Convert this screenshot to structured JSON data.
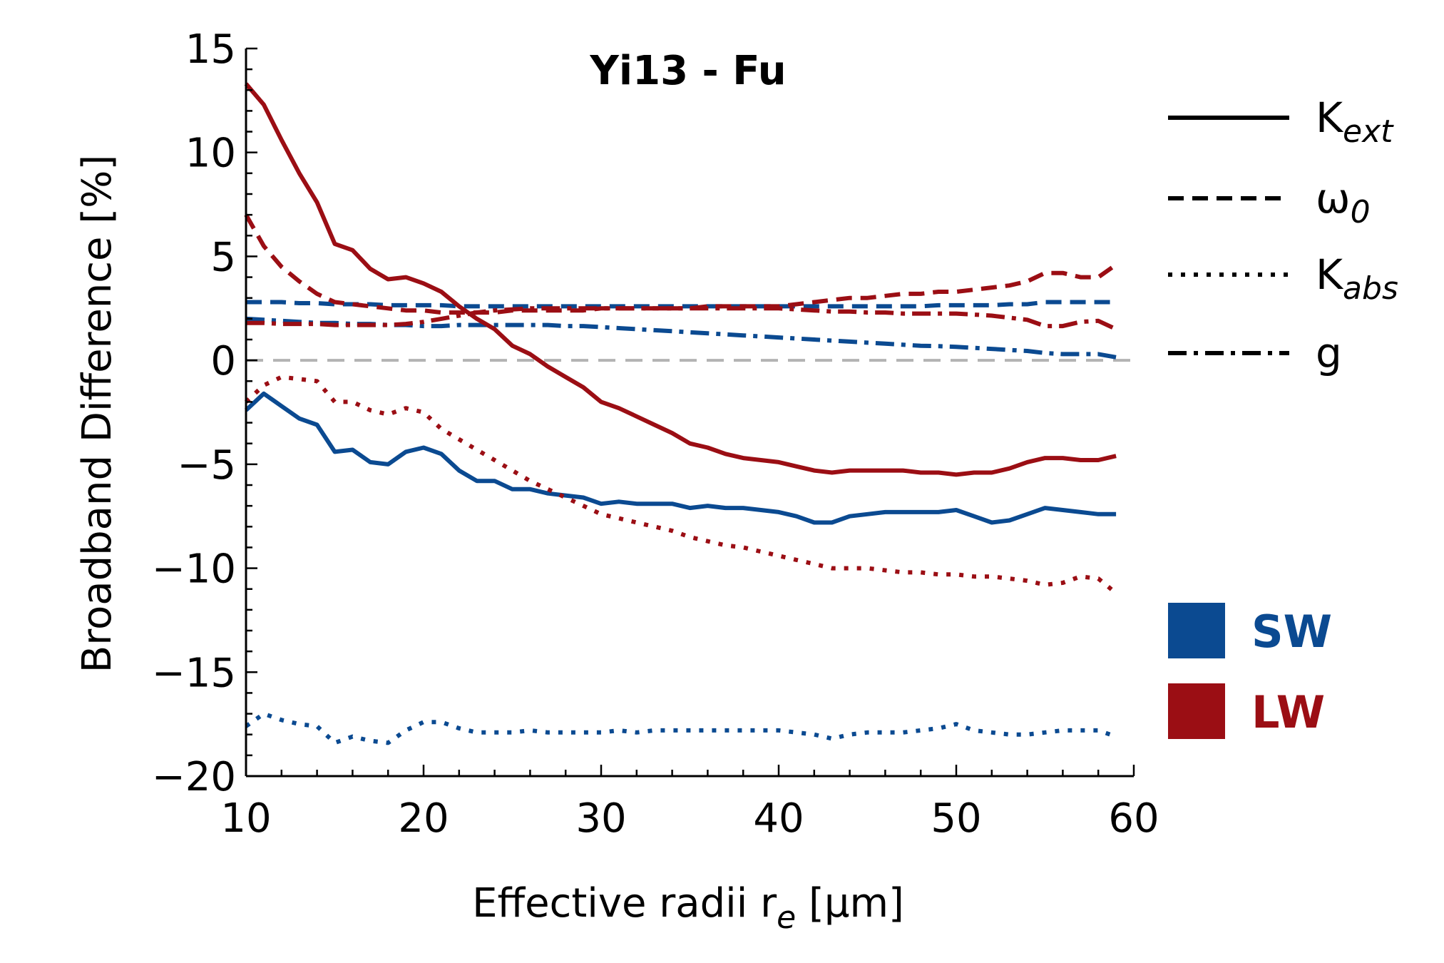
{
  "chart_data": {
    "type": "line",
    "title": "Yi13 - Fu",
    "xlabel": "Effective radii r",
    "xlabel_sub": "e",
    "xlabel_units": " [μm]",
    "ylabel": "Broadband Difference [%]",
    "xlim": [
      10,
      60
    ],
    "ylim": [
      -20,
      15
    ],
    "x_ticks": [
      10,
      20,
      30,
      40,
      50,
      60
    ],
    "x_tick_labels": [
      "10",
      "20",
      "30",
      "40",
      "50",
      "60"
    ],
    "y_ticks": [
      -20,
      -15,
      -10,
      -5,
      0,
      5,
      10,
      15
    ],
    "y_tick_labels": [
      "−20",
      "−15",
      "−10",
      "−5",
      "0",
      "5",
      "10",
      "15"
    ],
    "reference_line": {
      "y": 0,
      "style": "dashed",
      "color": "#b3b3b3"
    },
    "grid": false,
    "x": [
      10,
      11,
      12,
      13,
      14,
      15,
      16,
      17,
      18,
      19,
      20,
      21,
      22,
      23,
      24,
      25,
      26,
      27,
      28,
      29,
      30,
      31,
      32,
      33,
      34,
      35,
      36,
      37,
      38,
      39,
      40,
      41,
      42,
      43,
      44,
      45,
      46,
      47,
      48,
      49,
      50,
      51,
      52,
      53,
      54,
      55,
      56,
      57,
      58,
      59
    ],
    "series": [
      {
        "band": "SW",
        "property": "K_ext",
        "style": "solid",
        "color": "#0b4a91",
        "values": [
          -2.4,
          -1.6,
          -2.2,
          -2.8,
          -3.1,
          -4.4,
          -4.3,
          -4.9,
          -5.0,
          -4.4,
          -4.2,
          -4.5,
          -5.3,
          -5.8,
          -5.8,
          -6.2,
          -6.2,
          -6.4,
          -6.5,
          -6.6,
          -6.9,
          -6.8,
          -6.9,
          -6.9,
          -6.9,
          -7.1,
          -7.0,
          -7.1,
          -7.1,
          -7.2,
          -7.3,
          -7.5,
          -7.8,
          -7.8,
          -7.5,
          -7.4,
          -7.3,
          -7.3,
          -7.3,
          -7.3,
          -7.2,
          -7.5,
          -7.8,
          -7.7,
          -7.4,
          -7.1,
          -7.2,
          -7.3,
          -7.4,
          -7.4
        ]
      },
      {
        "band": "SW",
        "property": "omega_0",
        "style": "dashed",
        "color": "#0b4a91",
        "values": [
          2.8,
          2.8,
          2.8,
          2.75,
          2.75,
          2.7,
          2.7,
          2.7,
          2.65,
          2.65,
          2.65,
          2.65,
          2.6,
          2.6,
          2.6,
          2.6,
          2.6,
          2.6,
          2.6,
          2.6,
          2.6,
          2.6,
          2.6,
          2.6,
          2.6,
          2.6,
          2.6,
          2.6,
          2.6,
          2.6,
          2.6,
          2.6,
          2.6,
          2.6,
          2.6,
          2.6,
          2.6,
          2.6,
          2.6,
          2.65,
          2.65,
          2.65,
          2.65,
          2.7,
          2.7,
          2.8,
          2.8,
          2.8,
          2.8,
          2.8
        ]
      },
      {
        "band": "SW",
        "property": "K_abs",
        "style": "dotted",
        "color": "#0b4a91",
        "values": [
          -17.6,
          -17.0,
          -17.3,
          -17.5,
          -17.6,
          -18.4,
          -18.1,
          -18.3,
          -18.4,
          -17.8,
          -17.4,
          -17.4,
          -17.7,
          -17.9,
          -17.9,
          -17.9,
          -17.8,
          -17.9,
          -17.9,
          -17.9,
          -17.9,
          -17.8,
          -17.9,
          -17.8,
          -17.8,
          -17.8,
          -17.8,
          -17.8,
          -17.8,
          -17.8,
          -17.8,
          -17.9,
          -18.0,
          -18.2,
          -18.0,
          -17.9,
          -17.9,
          -17.9,
          -17.8,
          -17.7,
          -17.5,
          -17.8,
          -17.9,
          -18.0,
          -18.0,
          -17.9,
          -17.8,
          -17.8,
          -17.8,
          -18.1
        ]
      },
      {
        "band": "SW",
        "property": "g",
        "style": "dashdot",
        "color": "#0b4a91",
        "values": [
          2.0,
          1.95,
          1.9,
          1.85,
          1.8,
          1.8,
          1.75,
          1.75,
          1.7,
          1.7,
          1.65,
          1.65,
          1.7,
          1.7,
          1.7,
          1.7,
          1.7,
          1.7,
          1.65,
          1.65,
          1.6,
          1.55,
          1.5,
          1.45,
          1.4,
          1.35,
          1.3,
          1.25,
          1.2,
          1.15,
          1.1,
          1.05,
          1.0,
          0.95,
          0.9,
          0.85,
          0.8,
          0.75,
          0.7,
          0.68,
          0.65,
          0.6,
          0.55,
          0.5,
          0.45,
          0.35,
          0.3,
          0.3,
          0.3,
          0.15
        ]
      },
      {
        "band": "LW",
        "property": "K_ext",
        "style": "solid",
        "color": "#9b0e14",
        "values": [
          13.3,
          12.3,
          10.6,
          9.0,
          7.6,
          5.6,
          5.3,
          4.4,
          3.9,
          4.0,
          3.7,
          3.3,
          2.6,
          2.0,
          1.5,
          0.7,
          0.3,
          -0.3,
          -0.8,
          -1.3,
          -2.0,
          -2.3,
          -2.7,
          -3.1,
          -3.5,
          -4.0,
          -4.2,
          -4.5,
          -4.7,
          -4.8,
          -4.9,
          -5.1,
          -5.3,
          -5.4,
          -5.3,
          -5.3,
          -5.3,
          -5.3,
          -5.4,
          -5.4,
          -5.5,
          -5.4,
          -5.4,
          -5.2,
          -4.9,
          -4.7,
          -4.7,
          -4.8,
          -4.8,
          -4.6
        ]
      },
      {
        "band": "LW",
        "property": "omega_0",
        "style": "dashed",
        "color": "#9b0e14",
        "values": [
          7.0,
          5.5,
          4.5,
          3.8,
          3.2,
          2.8,
          2.7,
          2.6,
          2.5,
          2.4,
          2.4,
          2.3,
          2.3,
          2.3,
          2.3,
          2.4,
          2.4,
          2.4,
          2.4,
          2.4,
          2.5,
          2.5,
          2.5,
          2.5,
          2.5,
          2.5,
          2.6,
          2.6,
          2.6,
          2.6,
          2.6,
          2.7,
          2.8,
          2.9,
          3.0,
          3.0,
          3.1,
          3.2,
          3.2,
          3.3,
          3.3,
          3.4,
          3.5,
          3.6,
          3.8,
          4.2,
          4.2,
          4.0,
          4.0,
          4.6
        ]
      },
      {
        "band": "LW",
        "property": "K_abs",
        "style": "dotted",
        "color": "#9b0e14",
        "values": [
          -2.0,
          -1.2,
          -0.8,
          -0.9,
          -1.0,
          -2.0,
          -2.0,
          -2.4,
          -2.6,
          -2.3,
          -2.5,
          -3.3,
          -3.8,
          -4.3,
          -4.8,
          -5.3,
          -5.8,
          -6.2,
          -6.6,
          -7.0,
          -7.4,
          -7.6,
          -7.8,
          -8.0,
          -8.2,
          -8.5,
          -8.7,
          -8.9,
          -9.0,
          -9.2,
          -9.4,
          -9.6,
          -9.8,
          -10.0,
          -10.0,
          -10.0,
          -10.1,
          -10.2,
          -10.2,
          -10.3,
          -10.3,
          -10.4,
          -10.4,
          -10.5,
          -10.6,
          -10.8,
          -10.7,
          -10.4,
          -10.5,
          -11.2
        ]
      },
      {
        "band": "LW",
        "property": "g",
        "style": "dashdot",
        "color": "#9b0e14",
        "values": [
          1.8,
          1.8,
          1.75,
          1.75,
          1.75,
          1.7,
          1.7,
          1.7,
          1.7,
          1.75,
          1.85,
          2.0,
          2.15,
          2.3,
          2.4,
          2.45,
          2.5,
          2.5,
          2.5,
          2.5,
          2.5,
          2.5,
          2.5,
          2.5,
          2.5,
          2.5,
          2.5,
          2.5,
          2.5,
          2.5,
          2.5,
          2.45,
          2.4,
          2.35,
          2.35,
          2.3,
          2.3,
          2.25,
          2.25,
          2.25,
          2.25,
          2.2,
          2.15,
          2.05,
          1.95,
          1.65,
          1.65,
          1.85,
          1.9,
          1.5
        ]
      }
    ],
    "legend": {
      "line_styles": [
        {
          "style": "solid",
          "label": "K",
          "sub": "ext"
        },
        {
          "style": "dashed",
          "label": "ω",
          "sub": "0"
        },
        {
          "style": "dotted",
          "label": "K",
          "sub": "abs"
        },
        {
          "style": "dashdot",
          "label": "g",
          "sub": ""
        }
      ],
      "bands": [
        {
          "label": "SW",
          "color": "#0b4a91"
        },
        {
          "label": "LW",
          "color": "#9b0e14"
        }
      ],
      "placement": "right, outside plot"
    }
  }
}
